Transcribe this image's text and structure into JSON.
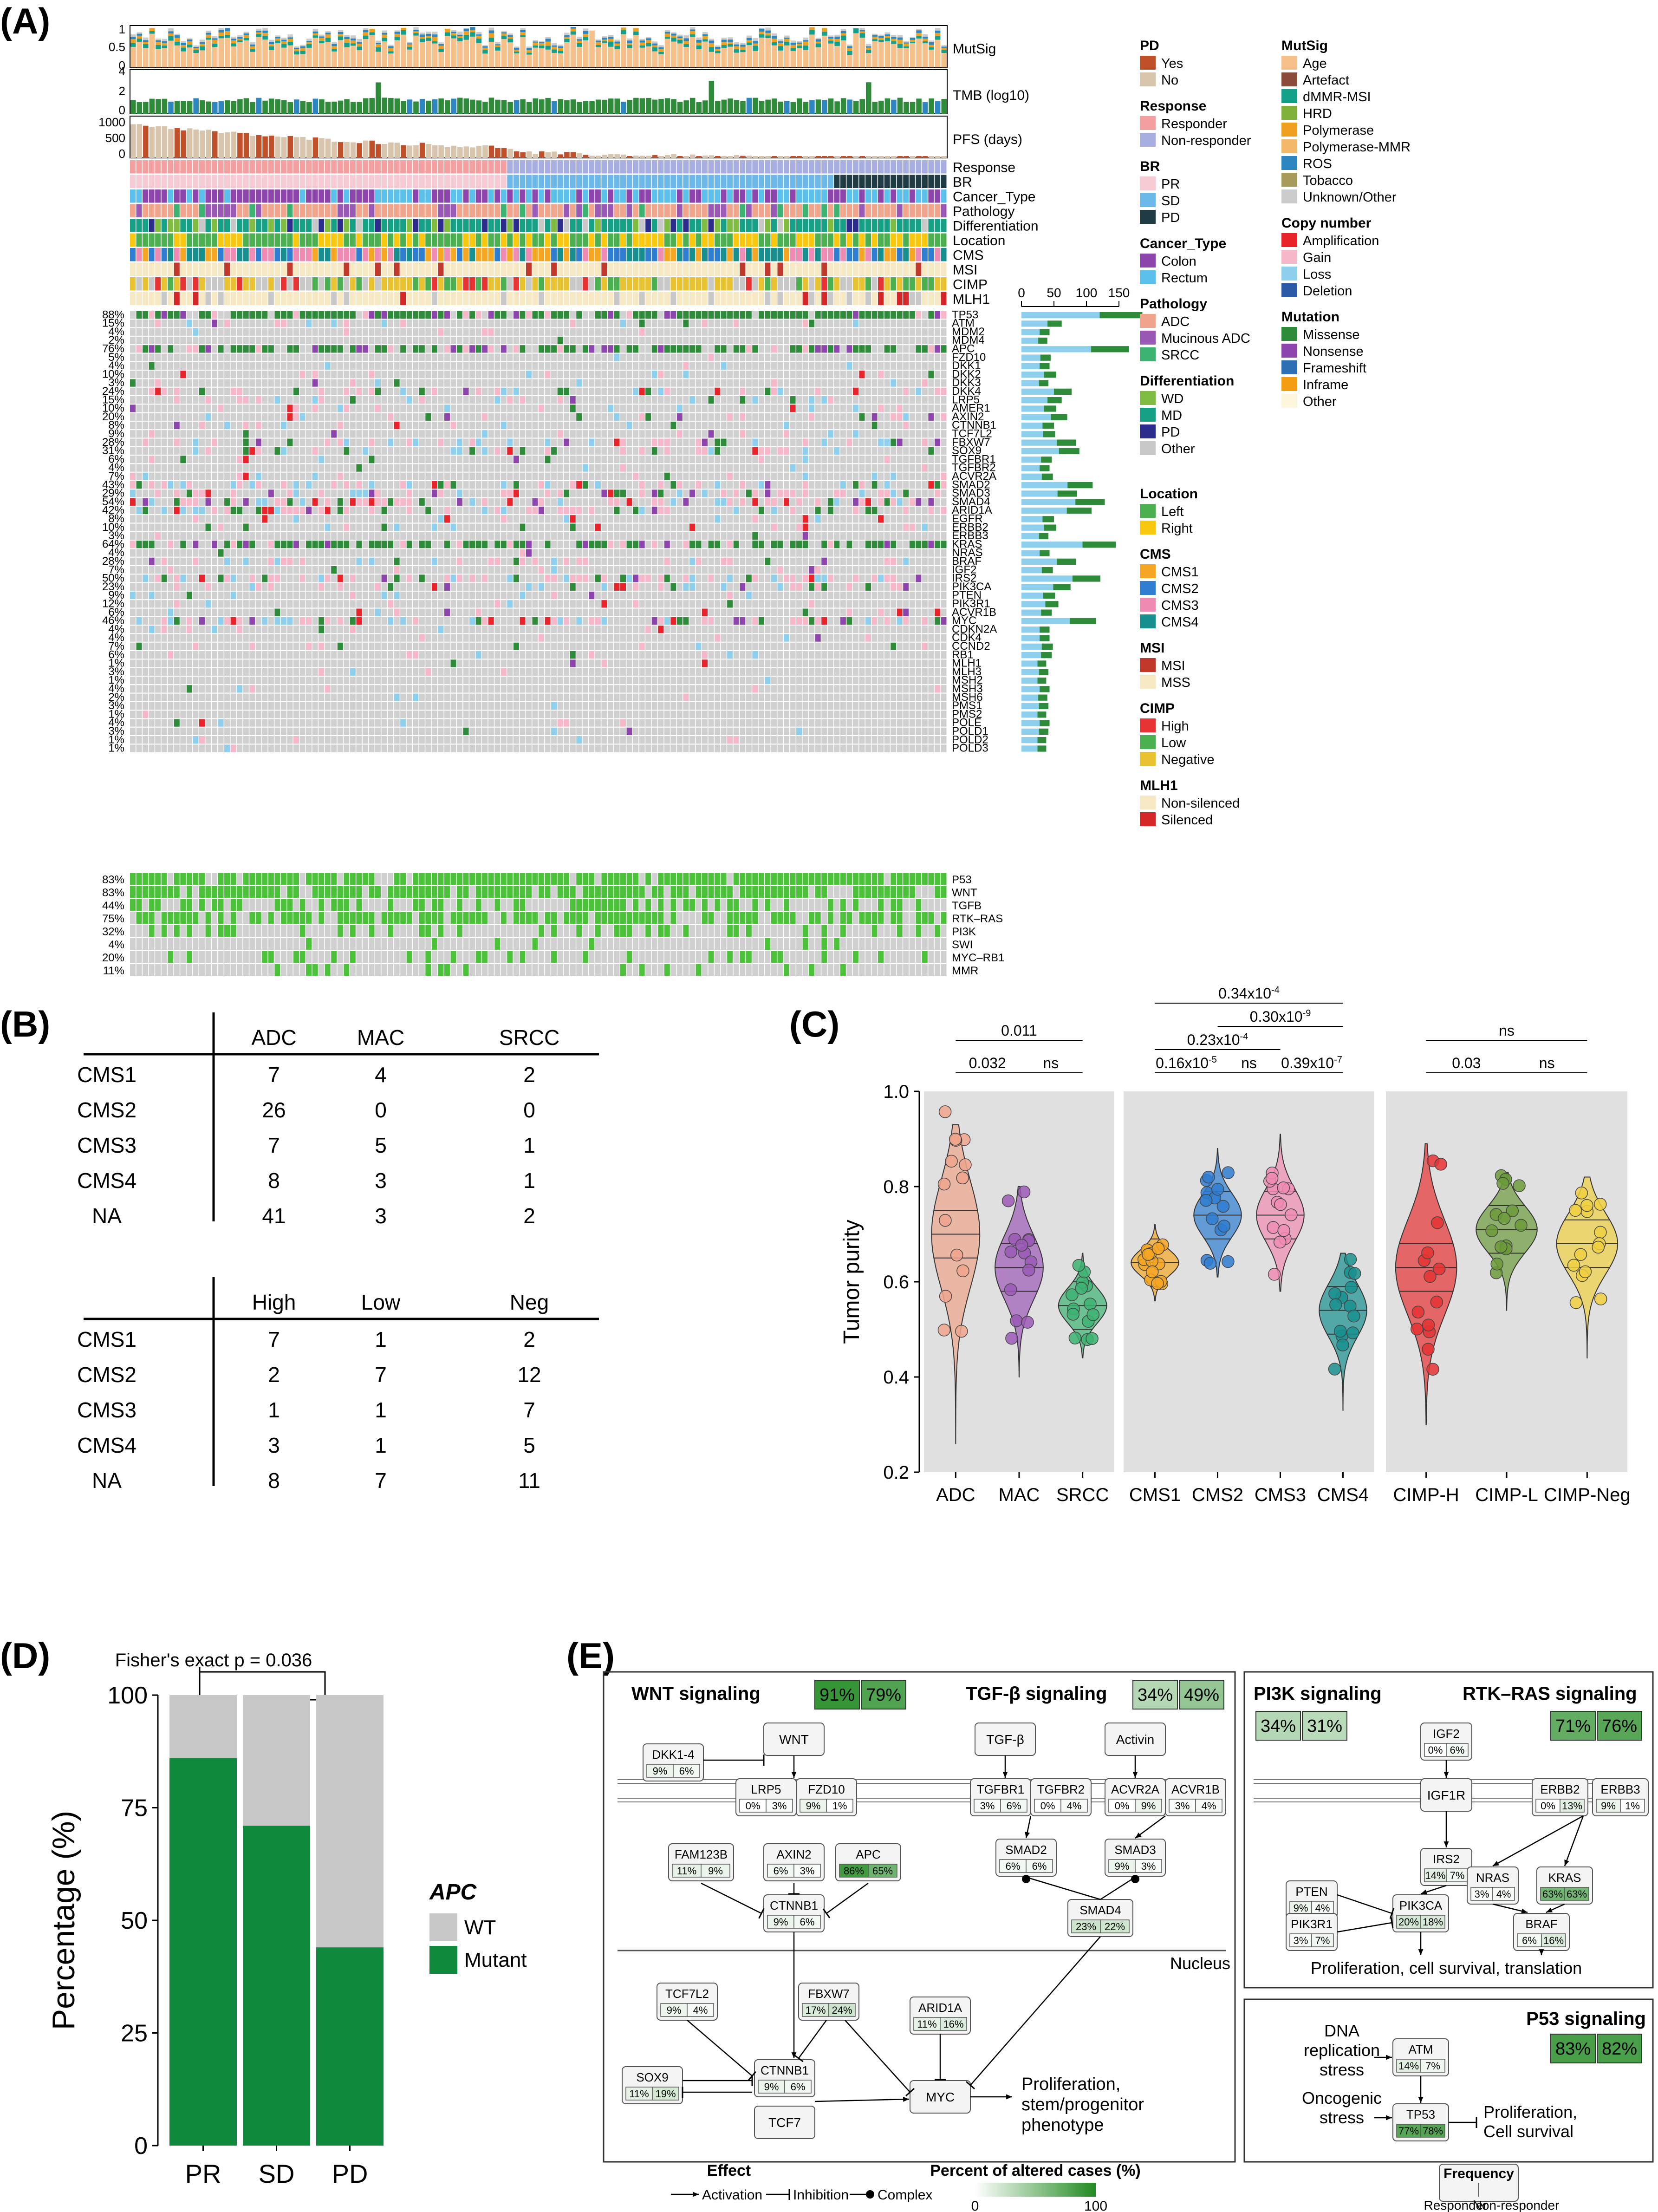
{
  "panels": {
    "A": "(A)",
    "B": "(B)",
    "C": "(C)",
    "D": "(D)",
    "E": "(E)"
  },
  "colors": {
    "ADC": "#f0a58c",
    "MAC": "#9b59b6",
    "SRCC": "#3cb371",
    "CMS1": "#f5a623",
    "CMS2": "#2e7dd1",
    "CMS3": "#f08cb4",
    "CMS4": "#178f8f",
    "CIMP_H": "#e63232",
    "CIMP_L": "#6b9b3a",
    "CIMP_Neg": "#f0d040",
    "apc_wt": "#c8c8c8",
    "apc_mut": "#0f8a3c",
    "violin_bg": "#e0e0e0"
  },
  "panelA": {
    "top_tracks": [
      "MutSig",
      "TMB (log10)",
      "PFS (days)"
    ],
    "mutsig_ticks": [
      "1",
      "0.5",
      "0"
    ],
    "tmb_ticks": [
      "4",
      "2",
      "0"
    ],
    "pfs_ticks": [
      "1000",
      "500",
      "0"
    ],
    "clinical_tracks": [
      "Response",
      "BR",
      "Cancer_Type",
      "Pathology",
      "Differentiation",
      "Location",
      "CMS",
      "MSI",
      "CIMP",
      "MLH1"
    ],
    "genes": [
      {
        "name": "TP53",
        "pct": "88%"
      },
      {
        "name": "ATM",
        "pct": "15%"
      },
      {
        "name": "MDM2",
        "pct": "4%"
      },
      {
        "name": "MDM4",
        "pct": "2%"
      },
      {
        "name": "APC",
        "pct": "76%"
      },
      {
        "name": "FZD10",
        "pct": "5%"
      },
      {
        "name": "DKK1",
        "pct": "4%"
      },
      {
        "name": "DKK2",
        "pct": "10%"
      },
      {
        "name": "DKK3",
        "pct": "3%"
      },
      {
        "name": "DKK4",
        "pct": "24%"
      },
      {
        "name": "LRP5",
        "pct": "15%"
      },
      {
        "name": "AMER1",
        "pct": "10%"
      },
      {
        "name": "AXIN2",
        "pct": "20%"
      },
      {
        "name": "CTNNB1",
        "pct": "8%"
      },
      {
        "name": "TCF7L2",
        "pct": "9%"
      },
      {
        "name": "FBXW7",
        "pct": "28%"
      },
      {
        "name": "SOX9",
        "pct": "31%"
      },
      {
        "name": "TGFBR1",
        "pct": "6%"
      },
      {
        "name": "TGFBR2",
        "pct": "4%"
      },
      {
        "name": "ACVR2A",
        "pct": "7%"
      },
      {
        "name": "SMAD2",
        "pct": "43%"
      },
      {
        "name": "SMAD3",
        "pct": "29%"
      },
      {
        "name": "SMAD4",
        "pct": "54%"
      },
      {
        "name": "ARID1A",
        "pct": "42%"
      },
      {
        "name": "EGFR",
        "pct": "8%"
      },
      {
        "name": "ERBB2",
        "pct": "10%"
      },
      {
        "name": "ERBB3",
        "pct": "3%"
      },
      {
        "name": "KRAS",
        "pct": "64%"
      },
      {
        "name": "NRAS",
        "pct": "4%"
      },
      {
        "name": "BRAF",
        "pct": "28%"
      },
      {
        "name": "IGF2",
        "pct": "7%"
      },
      {
        "name": "IRS2",
        "pct": "50%"
      },
      {
        "name": "PIK3CA",
        "pct": "23%"
      },
      {
        "name": "PTEN",
        "pct": "9%"
      },
      {
        "name": "PIK3R1",
        "pct": "12%"
      },
      {
        "name": "ACVR1B",
        "pct": "6%"
      },
      {
        "name": "MYC",
        "pct": "46%"
      },
      {
        "name": "CDKN2A",
        "pct": "4%"
      },
      {
        "name": "CDK4",
        "pct": "4%"
      },
      {
        "name": "CCND2",
        "pct": "7%"
      },
      {
        "name": "RB1",
        "pct": "6%"
      },
      {
        "name": "MLH1",
        "pct": "1%"
      },
      {
        "name": "MLH3",
        "pct": "3%"
      },
      {
        "name": "MSH2",
        "pct": "1%"
      },
      {
        "name": "MSH3",
        "pct": "4%"
      },
      {
        "name": "MSH6",
        "pct": "2%"
      },
      {
        "name": "PMS1",
        "pct": "3%"
      },
      {
        "name": "PMS2",
        "pct": "1%"
      },
      {
        "name": "POLE",
        "pct": "4%"
      },
      {
        "name": "POLD1",
        "pct": "3%"
      },
      {
        "name": "POLD2",
        "pct": "1%"
      },
      {
        "name": "POLD3",
        "pct": "1%"
      }
    ],
    "pathways": [
      {
        "name": "P53",
        "pct": "83%"
      },
      {
        "name": "WNT",
        "pct": "83%"
      },
      {
        "name": "TGFB",
        "pct": "44%"
      },
      {
        "name": "RTK–RAS",
        "pct": "75%"
      },
      {
        "name": "PI3K",
        "pct": "32%"
      },
      {
        "name": "SWI",
        "pct": "4%"
      },
      {
        "name": "MYC–RB1",
        "pct": "20%"
      },
      {
        "name": "MMR",
        "pct": "11%"
      }
    ],
    "count_axis": [
      "0",
      "50",
      "100",
      "150"
    ],
    "legend_col1": [
      {
        "title": "PD",
        "items": [
          {
            "label": "Yes",
            "color": "#c0502a"
          },
          {
            "label": "No",
            "color": "#d8c4aa"
          }
        ]
      },
      {
        "title": "Response",
        "items": [
          {
            "label": "Responder",
            "color": "#f4a0a0"
          },
          {
            "label": "Non-responder",
            "color": "#a8aee0"
          }
        ]
      },
      {
        "title": "BR",
        "items": [
          {
            "label": "PR",
            "color": "#f6cbd4"
          },
          {
            "label": "SD",
            "color": "#6cb8e8"
          },
          {
            "label": "PD",
            "color": "#1f3b44"
          }
        ]
      },
      {
        "title": "Cancer_Type",
        "items": [
          {
            "label": "Colon",
            "color": "#8e44ad"
          },
          {
            "label": "Rectum",
            "color": "#5bc0eb"
          }
        ]
      },
      {
        "title": "Pathology",
        "items": [
          {
            "label": "ADC",
            "color": "#f0a58c"
          },
          {
            "label": "Mucinous ADC",
            "color": "#9b59b6"
          },
          {
            "label": "SRCC",
            "color": "#3cb371"
          }
        ]
      },
      {
        "title": "Differentiation",
        "items": [
          {
            "label": "WD",
            "color": "#7fbc41"
          },
          {
            "label": "MD",
            "color": "#16a085"
          },
          {
            "label": "PD",
            "color": "#2c2c8c"
          },
          {
            "label": "Other",
            "color": "#c8c8c8"
          }
        ]
      },
      {
        "title": "Location",
        "items": [
          {
            "label": "Left",
            "color": "#4caf50"
          },
          {
            "label": "Right",
            "color": "#f9c80e"
          }
        ]
      },
      {
        "title": "CMS",
        "items": [
          {
            "label": "CMS1",
            "color": "#f5a623"
          },
          {
            "label": "CMS2",
            "color": "#2e7dd1"
          },
          {
            "label": "CMS3",
            "color": "#f08cb4"
          },
          {
            "label": "CMS4",
            "color": "#178f8f"
          }
        ]
      },
      {
        "title": "MSI",
        "items": [
          {
            "label": "MSI",
            "color": "#c0392b"
          },
          {
            "label": "MSS",
            "color": "#f6e8c3"
          }
        ]
      },
      {
        "title": "CIMP",
        "items": [
          {
            "label": "High",
            "color": "#e63232"
          },
          {
            "label": "Low",
            "color": "#4caf50"
          },
          {
            "label": "Negative",
            "color": "#e8c230"
          }
        ]
      },
      {
        "title": "MLH1",
        "items": [
          {
            "label": "Non-silenced",
            "color": "#f6e8c3"
          },
          {
            "label": "Silenced",
            "color": "#d62728"
          }
        ]
      }
    ],
    "legend_col2": [
      {
        "title": "MutSig",
        "items": [
          {
            "label": "Age",
            "color": "#f5c08a"
          },
          {
            "label": "Artefact",
            "color": "#8b4a3a"
          },
          {
            "label": "dMMR-MSI",
            "color": "#13a08a"
          },
          {
            "label": "HRD",
            "color": "#7fb03a"
          },
          {
            "label": "Polymerase",
            "color": "#f0a020"
          },
          {
            "label": "Polymerase-MMR",
            "color": "#f3b86a"
          },
          {
            "label": "ROS",
            "color": "#2e86c1"
          },
          {
            "label": "Tobacco",
            "color": "#a89a5a"
          },
          {
            "label": "Unknown/Other",
            "color": "#cccccc"
          }
        ]
      },
      {
        "title": "Copy number",
        "items": [
          {
            "label": "Amplification",
            "color": "#e8232a"
          },
          {
            "label": "Gain",
            "color": "#f6b8c8"
          },
          {
            "label": "Loss",
            "color": "#8ecfee"
          },
          {
            "label": "Deletion",
            "color": "#2a5aa8"
          }
        ]
      },
      {
        "title": "Mutation",
        "items": [
          {
            "label": "Missense",
            "color": "#2e8b3a"
          },
          {
            "label": "Nonsense",
            "color": "#8e44ad"
          },
          {
            "label": "Frameshift",
            "color": "#2c6fb5"
          },
          {
            "label": "Inframe",
            "color": "#f39c12"
          },
          {
            "label": "Other",
            "color": "#fdf5dc"
          }
        ]
      }
    ]
  },
  "panelB": {
    "table1": {
      "headers": [
        "",
        "ADC",
        "MAC",
        "SRCC"
      ],
      "rows": [
        [
          "CMS1",
          "7",
          "4",
          "2"
        ],
        [
          "CMS2",
          "26",
          "0",
          "0"
        ],
        [
          "CMS3",
          "7",
          "5",
          "1"
        ],
        [
          "CMS4",
          "8",
          "3",
          "1"
        ],
        [
          "NA",
          "41",
          "3",
          "2"
        ]
      ]
    },
    "table2": {
      "headers": [
        "",
        "High",
        "Low",
        "Neg"
      ],
      "rows": [
        [
          "CMS1",
          "7",
          "1",
          "2"
        ],
        [
          "CMS2",
          "2",
          "7",
          "12"
        ],
        [
          "CMS3",
          "1",
          "1",
          "7"
        ],
        [
          "CMS4",
          "3",
          "1",
          "5"
        ],
        [
          "NA",
          "8",
          "7",
          "11"
        ]
      ]
    }
  },
  "chart_data": [
    {
      "type": "violin",
      "ylabel": "Tumor purity",
      "ylim": [
        0.2,
        1.0
      ],
      "yticks": [
        "0.2",
        "0.4",
        "0.6",
        "0.8",
        "1.0"
      ],
      "groups": [
        {
          "facet": 1,
          "categories": [
            "ADC",
            "MAC",
            "SRCC"
          ],
          "medians": [
            0.7,
            0.63,
            0.55
          ],
          "comparisons": [
            {
              "pair": "ADC–MAC",
              "label": "0.032"
            },
            {
              "pair": "ADC–SRCC",
              "label": "0.011"
            },
            {
              "pair": "MAC–SRCC",
              "label": "ns"
            }
          ]
        },
        {
          "facet": 2,
          "categories": [
            "CMS1",
            "CMS2",
            "CMS3",
            "CMS4"
          ],
          "medians": [
            0.64,
            0.74,
            0.74,
            0.54
          ],
          "comparisons": [
            {
              "pair": "CMS1–CMS2",
              "label": "0.16x10",
              "exp": "-5"
            },
            {
              "pair": "CMS2–CMS3",
              "label": "ns"
            },
            {
              "pair": "CMS3–CMS4",
              "label": "0.39x10",
              "exp": "-7"
            },
            {
              "pair": "CMS1–CMS3",
              "label": "0.23x10",
              "exp": "-4"
            },
            {
              "pair": "CMS2–CMS4",
              "label": "0.30x10",
              "exp": "-9"
            },
            {
              "pair": "CMS1–CMS4",
              "label": "0.34x10",
              "exp": "-4"
            }
          ]
        },
        {
          "facet": 3,
          "categories": [
            "CIMP-H",
            "CIMP-L",
            "CIMP-Neg"
          ],
          "medians": [
            0.63,
            0.71,
            0.68
          ],
          "comparisons": [
            {
              "pair": "CIMP-H–CIMP-L",
              "label": "0.03"
            },
            {
              "pair": "CIMP-L–CIMP-Neg",
              "label": "ns"
            },
            {
              "pair": "CIMP-H–CIMP-Neg",
              "label": "ns"
            }
          ]
        }
      ]
    },
    {
      "type": "bar",
      "stacked": true,
      "title": "Fisher's exact p = 0.036",
      "categories": [
        "PR",
        "SD",
        "PD"
      ],
      "series": [
        {
          "name": "Mutant",
          "values": [
            86,
            71,
            44
          ]
        },
        {
          "name": "WT",
          "values": [
            14,
            29,
            56
          ]
        }
      ],
      "ylabel": "Percentage (%)",
      "yticks": [
        "0",
        "25",
        "50",
        "75",
        "100"
      ],
      "ylim": [
        0,
        100
      ],
      "legend_title": "APC",
      "legend": [
        "WT",
        "Mutant"
      ]
    }
  ],
  "panelE": {
    "wnt_title": "WNT signaling",
    "wnt_freq": [
      "91%",
      "79%"
    ],
    "tgf_title": "TGF-β signaling",
    "tgf_freq": [
      "34%",
      "49%"
    ],
    "pi3k_title": "PI3K signaling",
    "pi3k_freq": [
      "34%",
      "31%"
    ],
    "rtk_title": "RTK–RAS signaling",
    "rtk_freq": [
      "71%",
      "76%"
    ],
    "p53_title": "P53 signaling",
    "p53_freq": [
      "83%",
      "82%"
    ],
    "nodes": {
      "WNT": "WNT",
      "TGFb": "TGF-β",
      "Activin": "Activin",
      "DKK": {
        "label": "DKK1-4",
        "v": [
          "9%",
          "6%"
        ]
      },
      "LRP5": {
        "label": "LRP5",
        "v": [
          "0%",
          "3%"
        ]
      },
      "FZD10": {
        "label": "FZD10",
        "v": [
          "9%",
          "1%"
        ]
      },
      "TGFBR1": {
        "label": "TGFBR1",
        "v": [
          "3%",
          "6%"
        ]
      },
      "TGFBR2": {
        "label": "TGFBR2",
        "v": [
          "0%",
          "4%"
        ]
      },
      "ACVR2A": {
        "label": "ACVR2A",
        "v": [
          "0%",
          "9%"
        ]
      },
      "ACVR1B": {
        "label": "ACVR1B",
        "v": [
          "3%",
          "4%"
        ]
      },
      "FAM123B": {
        "label": "FAM123B",
        "v": [
          "11%",
          "9%"
        ]
      },
      "AXIN2": {
        "label": "AXIN2",
        "v": [
          "6%",
          "3%"
        ]
      },
      "APC": {
        "label": "APC",
        "v": [
          "86%",
          "65%"
        ]
      },
      "SMAD2": {
        "label": "SMAD2",
        "v": [
          "6%",
          "6%"
        ]
      },
      "SMAD3": {
        "label": "SMAD3",
        "v": [
          "9%",
          "3%"
        ]
      },
      "CTNNB1a": {
        "label": "CTNNB1",
        "v": [
          "9%",
          "6%"
        ]
      },
      "SMAD4": {
        "label": "SMAD4",
        "v": [
          "23%",
          "22%"
        ]
      },
      "TCF7L2": {
        "label": "TCF7L2",
        "v": [
          "9%",
          "4%"
        ]
      },
      "FBXW7": {
        "label": "FBXW7",
        "v": [
          "17%",
          "24%"
        ]
      },
      "ARID1A": {
        "label": "ARID1A",
        "v": [
          "11%",
          "16%"
        ]
      },
      "CTNNB1b": {
        "label": "CTNNB1",
        "v": [
          "9%",
          "6%"
        ]
      },
      "SOX9": {
        "label": "SOX9",
        "v": [
          "11%",
          "19%"
        ]
      },
      "TCF7": "TCF7",
      "MYC": "MYC",
      "IGF2": {
        "label": "IGF2",
        "v": [
          "0%",
          "6%"
        ]
      },
      "IGF1R": "IGF1R",
      "ERBB2": {
        "label": "ERBB2",
        "v": [
          "0%",
          "13%"
        ]
      },
      "ERBB3": {
        "label": "ERBB3",
        "v": [
          "9%",
          "1%"
        ]
      },
      "IRS2": {
        "label": "IRS2",
        "v": [
          "14%",
          "7%"
        ]
      },
      "PTEN": {
        "label": "PTEN",
        "v": [
          "9%",
          "4%"
        ]
      },
      "PIK3CA": {
        "label": "PIK3CA",
        "v": [
          "20%",
          "18%"
        ]
      },
      "PIK3R1": {
        "label": "PIK3R1",
        "v": [
          "3%",
          "7%"
        ]
      },
      "NRAS": {
        "label": "NRAS",
        "v": [
          "3%",
          "4%"
        ]
      },
      "KRAS": {
        "label": "KRAS",
        "v": [
          "63%",
          "63%"
        ]
      },
      "BRAF": {
        "label": "BRAF",
        "v": [
          "6%",
          "16%"
        ]
      },
      "ATM": {
        "label": "ATM",
        "v": [
          "14%",
          "7%"
        ]
      },
      "TP53": {
        "label": "TP53",
        "v": [
          "77%",
          "78%"
        ]
      }
    },
    "nucleus": "Nucleus",
    "out_wnt": [
      "Proliferation,",
      "stem/progenitor",
      "phenotype"
    ],
    "out_pi3k": "Proliferation, cell survival, translation",
    "p53_dna": [
      "DNA",
      "replication",
      "stress"
    ],
    "p53_onc": [
      "Oncogenic",
      "stress"
    ],
    "p53_out": [
      "Proliferation,",
      "Cell survival"
    ],
    "legend_effect_title": "Effect",
    "legend_effect": [
      "Activation",
      "Inhibition",
      "Complex"
    ],
    "legend_pct_title": "Percent of altered cases (%)",
    "legend_pct_ticks": [
      "0",
      "100"
    ],
    "legend_freq_title": "Frequency",
    "legend_freq": [
      "Responder",
      "Non-responder"
    ]
  }
}
